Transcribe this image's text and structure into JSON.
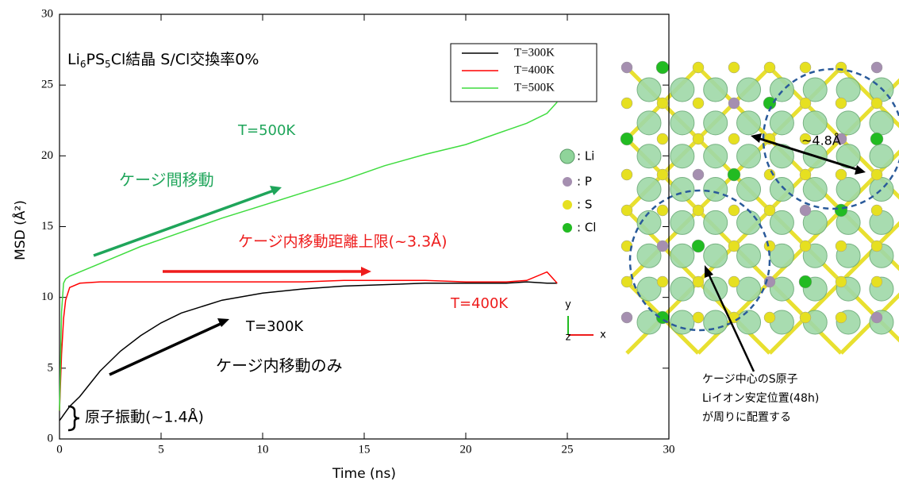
{
  "chart_data": {
    "type": "line",
    "title_parts": [
      "Li",
      "6",
      "PS",
      "5",
      "Cl結晶  S/Cl交換率0%"
    ],
    "x_label": "Time (ns)",
    "y_label": "MSD (Å²)",
    "xlim": [
      0,
      30
    ],
    "ylim": [
      0,
      30
    ],
    "xticks": [
      0,
      5,
      10,
      15,
      20,
      25,
      30
    ],
    "yticks": [
      0,
      5,
      10,
      15,
      20,
      25,
      30
    ],
    "legend": "upper right",
    "x": [
      0,
      0.1,
      0.2,
      0.3,
      0.5,
      1,
      2,
      3,
      4,
      5,
      6,
      8,
      10,
      12,
      14,
      16,
      18,
      20,
      22,
      23,
      24,
      24.5
    ],
    "series": [
      {
        "name": "T=300K",
        "color": "#000000",
        "values": [
          1.3,
          1.5,
          1.7,
          1.9,
          2.3,
          3.0,
          4.8,
          6.2,
          7.3,
          8.2,
          8.9,
          9.8,
          10.3,
          10.6,
          10.8,
          10.9,
          11.0,
          11.0,
          11.0,
          11.1,
          11.0,
          11.0
        ]
      },
      {
        "name": "T=400K",
        "color": "#ff0000",
        "values": [
          2.0,
          6.0,
          8.5,
          9.8,
          10.7,
          11.0,
          11.1,
          11.1,
          11.1,
          11.1,
          11.1,
          11.1,
          11.1,
          11.1,
          11.2,
          11.2,
          11.2,
          11.1,
          11.1,
          11.2,
          11.8,
          11.0
        ]
      },
      {
        "name": "T=500K",
        "color": "#3fdc3f",
        "values": [
          2.0,
          9.0,
          11.0,
          11.3,
          11.5,
          11.8,
          12.4,
          13.0,
          13.6,
          14.1,
          14.6,
          15.6,
          16.5,
          17.4,
          18.3,
          19.3,
          20.1,
          20.8,
          21.8,
          22.3,
          23.0,
          23.8
        ]
      }
    ],
    "annotations": {
      "t500": "T=500K",
      "inter_cage": "ケージ間移動",
      "intra_limit": "ケージ内移動距離上限(~3.3Å)",
      "t400": "T=400K",
      "t300": "T=300K",
      "intra_only": "ケージ内移動のみ",
      "vibration": "原子振動(~1.4Å)"
    }
  },
  "structure": {
    "legend": [
      ": Li",
      ": P",
      ": S",
      ": Cl"
    ],
    "distance": "~4.8Å",
    "axes": [
      "y",
      "x",
      "z"
    ],
    "callout": [
      "ケージ中心のS原子",
      "Liイオン安定位置(48h)",
      "が周りに配置する"
    ]
  }
}
